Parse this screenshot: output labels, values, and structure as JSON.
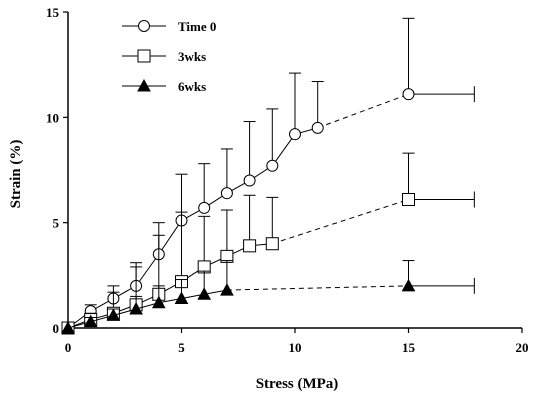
{
  "chart_data": {
    "type": "line",
    "xlabel": "Stress (MPa)",
    "ylabel": "Strain (%)",
    "xlim": [
      0,
      20
    ],
    "ylim": [
      0,
      15
    ],
    "xticks": [
      "0",
      "5",
      "10",
      "15",
      "20"
    ],
    "yticks": [
      "0",
      "5",
      "10",
      "15"
    ],
    "grid": false,
    "legend_position": "top-left",
    "series": [
      {
        "name": "Time 0",
        "marker": "circle-open",
        "x": [
          0,
          1,
          2,
          3,
          4,
          5,
          6,
          7,
          8,
          9,
          10,
          11,
          15
        ],
        "y": [
          0,
          0.8,
          1.4,
          2.0,
          3.5,
          5.1,
          5.7,
          6.4,
          7.0,
          7.7,
          9.2,
          9.5,
          11.1
        ],
        "err_y": [
          0,
          0.3,
          0.6,
          1.1,
          1.5,
          2.2,
          2.1,
          2.1,
          2.8,
          2.7,
          2.9,
          2.2,
          3.6
        ],
        "err_x": [
          0,
          0,
          0,
          0,
          0,
          0,
          0,
          0,
          0,
          0,
          0,
          0,
          2.9
        ],
        "dashed_segment_from_index": 11
      },
      {
        "name": "3wks",
        "marker": "square-open",
        "x": [
          0,
          1,
          2,
          3,
          4,
          5,
          6,
          7,
          8,
          9,
          15
        ],
        "y": [
          0,
          0.4,
          0.7,
          1.1,
          1.6,
          2.2,
          2.9,
          3.4,
          3.9,
          4.0,
          6.1
        ],
        "err_y": [
          0,
          0.3,
          1.0,
          1.8,
          2.8,
          3.3,
          2.4,
          2.2,
          2.4,
          2.2,
          2.2
        ],
        "err_x": [
          0,
          0,
          0,
          0,
          0,
          0,
          0,
          0,
          0,
          0,
          2.9
        ],
        "dashed_segment_from_index": 9
      },
      {
        "name": "6wks",
        "marker": "triangle-filled",
        "x": [
          0,
          1,
          2,
          3,
          4,
          5,
          6,
          7,
          15
        ],
        "y": [
          0,
          0.3,
          0.6,
          0.9,
          1.2,
          1.4,
          1.6,
          1.8,
          2.0
        ],
        "err_y": [
          0,
          0.2,
          0.3,
          0.6,
          0.8,
          0.9,
          1.1,
          1.4,
          1.2
        ],
        "err_x": [
          0,
          0,
          0,
          0,
          0,
          0,
          0,
          0,
          2.9
        ],
        "dashed_segment_from_index": 7
      }
    ]
  }
}
